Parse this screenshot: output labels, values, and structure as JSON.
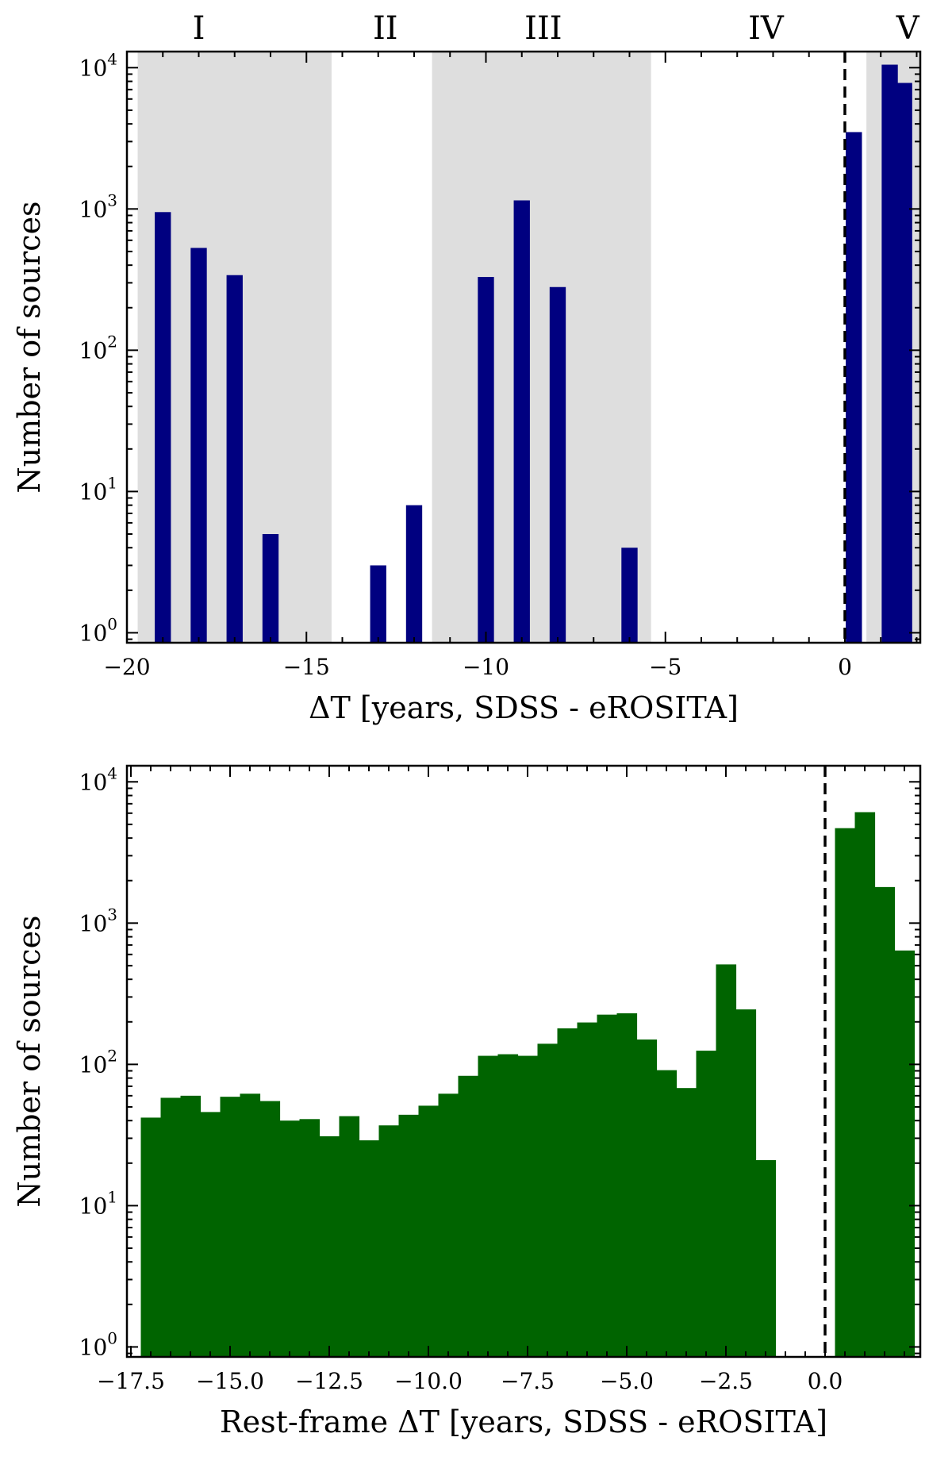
{
  "chart_data": [
    {
      "type": "bar",
      "xlabel": "ΔT [years, SDSS - eROSITA]",
      "ylabel": "Number of sources",
      "yscale": "log",
      "xlim": [
        -20,
        2.1
      ],
      "ylim": [
        0.85,
        13000
      ],
      "bar_color": "#000080",
      "bar_width": 0.45,
      "x": [
        -19,
        -18,
        -17,
        -16,
        -13,
        -12,
        -10,
        -9,
        -8,
        -6,
        0.25,
        1.25,
        1.65
      ],
      "values": [
        950,
        530,
        340,
        5,
        3,
        8,
        330,
        1150,
        280,
        4,
        3500,
        10500,
        7800
      ],
      "x_ticks": [
        -20,
        -15,
        -10,
        -5,
        0
      ],
      "x_tick_labels": [
        "−20",
        "−15",
        "−10",
        "−5",
        "0"
      ],
      "y_ticks": [
        1,
        10,
        100,
        1000,
        10000
      ],
      "y_tick_exponents": [
        "0",
        "1",
        "2",
        "3",
        "4"
      ],
      "y_tick_base": "10",
      "vline_x": 0,
      "shade_color": "#dedede",
      "eras": [
        {
          "label": "I",
          "start": -19.7,
          "end": -14.3,
          "shaded": true,
          "label_x": -18
        },
        {
          "label": "II",
          "start": -14.3,
          "end": -11.5,
          "shaded": false,
          "label_x": -12.8
        },
        {
          "label": "III",
          "start": -11.5,
          "end": -5.4,
          "shaded": true,
          "label_x": -8.4
        },
        {
          "label": "IV",
          "start": -5.4,
          "end": 0.6,
          "shaded": false,
          "label_x": -2.2
        },
        {
          "label": "V",
          "start": 0.6,
          "end": 2.1,
          "shaded": true,
          "label_x": 1.75
        }
      ]
    },
    {
      "type": "bar",
      "xlabel": "Rest-frame ΔT [years, SDSS - eROSITA]",
      "ylabel": "Number of sources",
      "yscale": "log",
      "xlim": [
        -17.6,
        2.4
      ],
      "ylim": [
        0.85,
        13000
      ],
      "bar_color": "#006400",
      "bin_width": 0.5,
      "bin_start": -17.25,
      "values": [
        42,
        58,
        60,
        46,
        59,
        62,
        55,
        40,
        41,
        31,
        43,
        29,
        37,
        44,
        51,
        62,
        83,
        115,
        118,
        115,
        140,
        180,
        198,
        225,
        230,
        150,
        91,
        68,
        125,
        510,
        245,
        21,
        0,
        0,
        0,
        4700,
        6100,
        1800,
        640
      ],
      "x_ticks": [
        -17.5,
        -15.0,
        -12.5,
        -10.0,
        -7.5,
        -5.0,
        -2.5,
        0.0
      ],
      "x_tick_labels": [
        "−17.5",
        "−15.0",
        "−12.5",
        "−10.0",
        "−7.5",
        "−5.0",
        "−2.5",
        "0.0"
      ],
      "y_ticks": [
        1,
        10,
        100,
        1000,
        10000
      ],
      "y_tick_exponents": [
        "0",
        "1",
        "2",
        "3",
        "4"
      ],
      "y_tick_base": "10",
      "vline_x": 0
    }
  ]
}
